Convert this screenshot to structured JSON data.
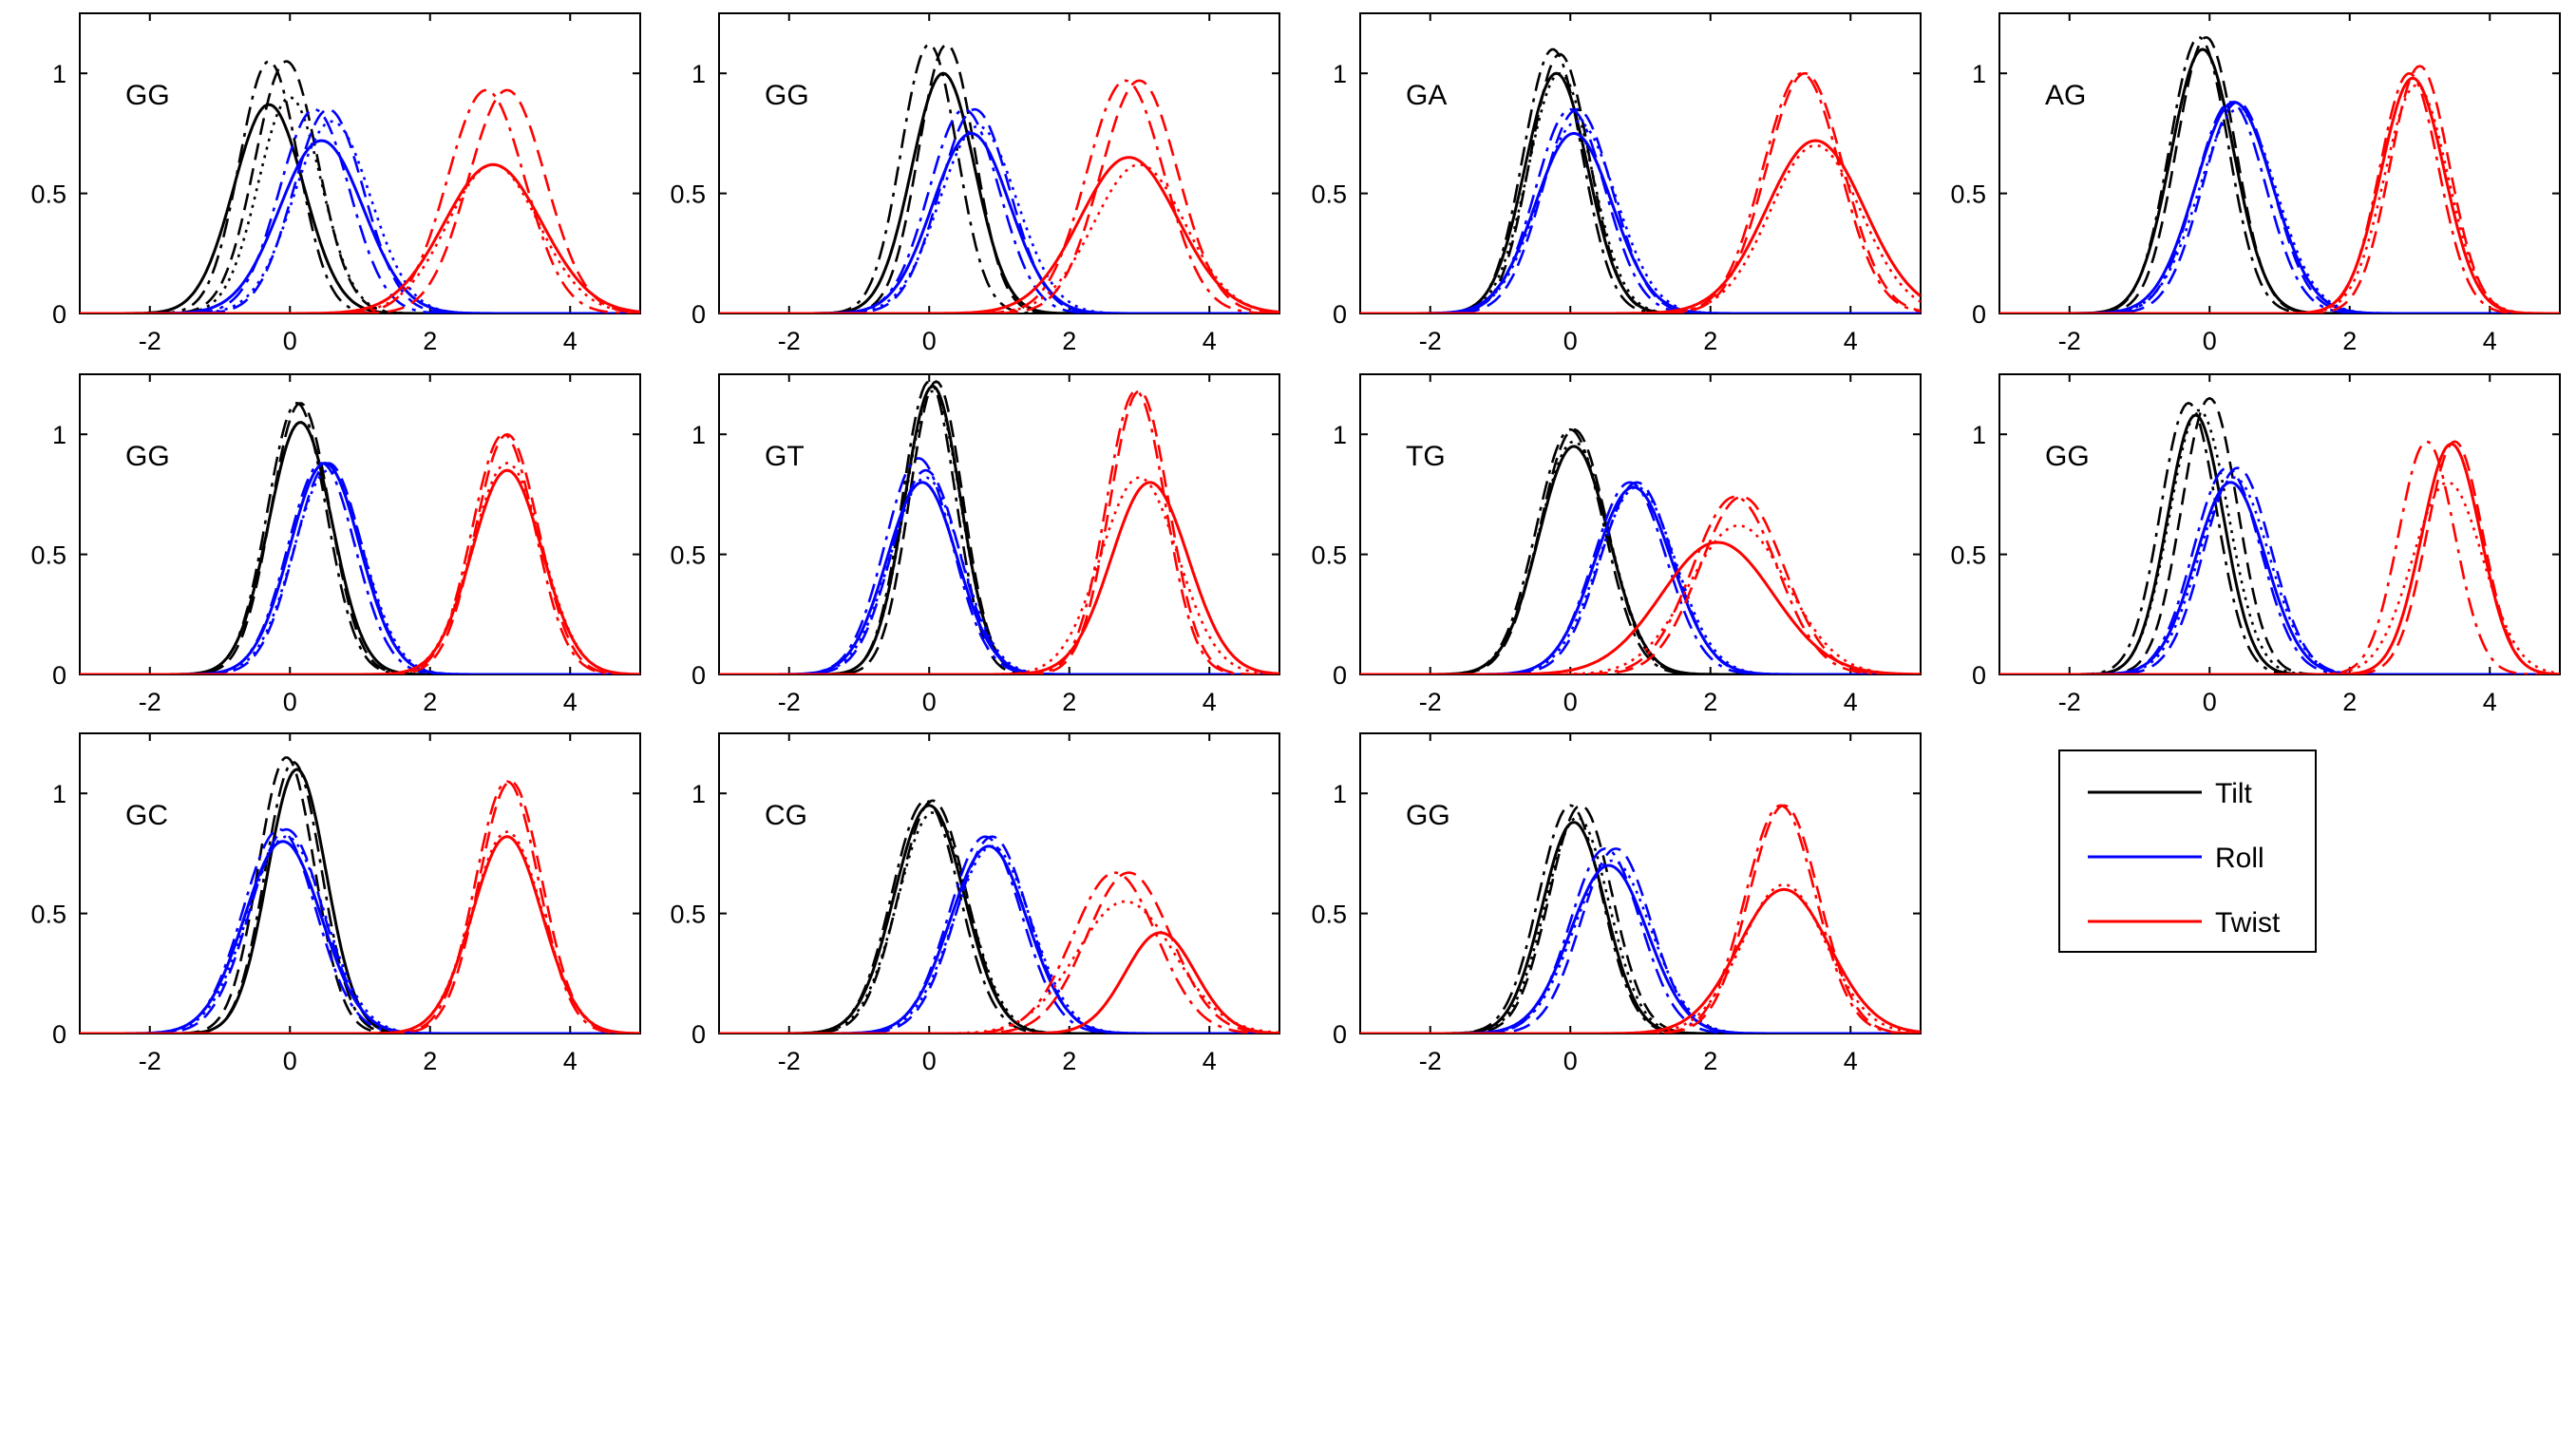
{
  "chart_data": {
    "type": "line",
    "xlim": [
      -3,
      5
    ],
    "ylim": [
      0,
      1.25
    ],
    "x_ticks": [
      -2,
      0,
      2,
      4
    ],
    "x_tick_labels": [
      "-2",
      "0",
      "2",
      "4"
    ],
    "y_ticks": [
      0,
      0.5,
      1
    ],
    "y_tick_labels": [
      "0",
      "0.5",
      "1"
    ],
    "grid": false,
    "line_styles": [
      "solid",
      "dashed",
      "dashdot",
      "dotted"
    ],
    "colors": {
      "Tilt": "#000000",
      "Roll": "#0000ff",
      "Twist": "#ff0000"
    },
    "legend": {
      "placement": "row-3-column-4",
      "entries": [
        {
          "label": "Tilt",
          "color": "#000000"
        },
        {
          "label": "Roll",
          "color": "#0000ff"
        },
        {
          "label": "Twist",
          "color": "#ff0000"
        }
      ]
    },
    "panels": [
      {
        "label": "GG",
        "series": [
          {
            "variable": "Tilt",
            "curves": [
              [
                -0.3,
                0.5,
                0.87
              ],
              [
                -0.05,
                0.45,
                1.05
              ],
              [
                -0.3,
                0.42,
                1.05
              ],
              [
                0.0,
                0.45,
                0.9
              ]
            ]
          },
          {
            "variable": "Roll",
            "curves": [
              [
                0.45,
                0.6,
                0.72
              ],
              [
                0.55,
                0.5,
                0.85
              ],
              [
                0.35,
                0.5,
                0.85
              ],
              [
                0.6,
                0.55,
                0.8
              ]
            ]
          },
          {
            "variable": "Twist",
            "curves": [
              [
                2.9,
                0.7,
                0.62
              ],
              [
                3.1,
                0.55,
                0.93
              ],
              [
                2.8,
                0.55,
                0.93
              ],
              [
                2.9,
                0.65,
                0.62
              ]
            ]
          }
        ]
      },
      {
        "label": "GG",
        "series": [
          {
            "variable": "Tilt",
            "curves": [
              [
                0.2,
                0.45,
                1.0
              ],
              [
                0.25,
                0.4,
                1.12
              ],
              [
                0.0,
                0.4,
                1.12
              ],
              [
                0.2,
                0.45,
                1.0
              ]
            ]
          },
          {
            "variable": "Roll",
            "curves": [
              [
                0.6,
                0.55,
                0.75
              ],
              [
                0.65,
                0.5,
                0.85
              ],
              [
                0.5,
                0.5,
                0.85
              ],
              [
                0.7,
                0.55,
                0.78
              ]
            ]
          },
          {
            "variable": "Twist",
            "curves": [
              [
                2.85,
                0.7,
                0.65
              ],
              [
                3.0,
                0.55,
                0.97
              ],
              [
                2.8,
                0.55,
                0.97
              ],
              [
                3.0,
                0.65,
                0.62
              ]
            ]
          }
        ]
      },
      {
        "label": "GA",
        "series": [
          {
            "variable": "Tilt",
            "curves": [
              [
                -0.2,
                0.45,
                1.0
              ],
              [
                -0.15,
                0.42,
                1.08
              ],
              [
                -0.25,
                0.42,
                1.1
              ],
              [
                -0.15,
                0.45,
                1.0
              ]
            ]
          },
          {
            "variable": "Roll",
            "curves": [
              [
                0.05,
                0.55,
                0.75
              ],
              [
                0.1,
                0.5,
                0.85
              ],
              [
                0.0,
                0.5,
                0.85
              ],
              [
                0.1,
                0.55,
                0.8
              ]
            ]
          },
          {
            "variable": "Twist",
            "curves": [
              [
                3.5,
                0.7,
                0.72
              ],
              [
                3.35,
                0.55,
                1.0
              ],
              [
                3.3,
                0.55,
                1.0
              ],
              [
                3.5,
                0.65,
                0.7
              ]
            ]
          }
        ]
      },
      {
        "label": "AG",
        "series": [
          {
            "variable": "Tilt",
            "curves": [
              [
                -0.1,
                0.45,
                1.1
              ],
              [
                -0.05,
                0.42,
                1.15
              ],
              [
                -0.15,
                0.42,
                1.15
              ],
              [
                -0.1,
                0.45,
                1.1
              ]
            ]
          },
          {
            "variable": "Roll",
            "curves": [
              [
                0.35,
                0.55,
                0.88
              ],
              [
                0.4,
                0.5,
                0.88
              ],
              [
                0.3,
                0.5,
                0.88
              ],
              [
                0.4,
                0.55,
                0.85
              ]
            ]
          },
          {
            "variable": "Twist",
            "curves": [
              [
                2.9,
                0.45,
                0.98
              ],
              [
                3.0,
                0.42,
                1.03
              ],
              [
                2.85,
                0.42,
                1.0
              ],
              [
                2.95,
                0.45,
                0.95
              ]
            ]
          }
        ]
      },
      {
        "label": "GG",
        "series": [
          {
            "variable": "Tilt",
            "curves": [
              [
                0.15,
                0.45,
                1.05
              ],
              [
                0.15,
                0.42,
                1.13
              ],
              [
                0.1,
                0.42,
                1.13
              ],
              [
                0.15,
                0.45,
                1.05
              ]
            ]
          },
          {
            "variable": "Roll",
            "curves": [
              [
                0.5,
                0.5,
                0.88
              ],
              [
                0.55,
                0.48,
                0.88
              ],
              [
                0.45,
                0.48,
                0.88
              ],
              [
                0.55,
                0.5,
                0.85
              ]
            ]
          },
          {
            "variable": "Twist",
            "curves": [
              [
                3.1,
                0.5,
                0.85
              ],
              [
                3.1,
                0.45,
                1.0
              ],
              [
                3.05,
                0.45,
                1.0
              ],
              [
                3.1,
                0.5,
                0.88
              ]
            ]
          }
        ]
      },
      {
        "label": "GT",
        "series": [
          {
            "variable": "Tilt",
            "curves": [
              [
                0.05,
                0.4,
                1.2
              ],
              [
                0.1,
                0.38,
                1.22
              ],
              [
                0.0,
                0.38,
                1.22
              ],
              [
                0.05,
                0.4,
                1.18
              ]
            ]
          },
          {
            "variable": "Roll",
            "curves": [
              [
                -0.1,
                0.5,
                0.8
              ],
              [
                -0.05,
                0.48,
                0.85
              ],
              [
                -0.15,
                0.48,
                0.9
              ],
              [
                -0.05,
                0.5,
                0.82
              ]
            ]
          },
          {
            "variable": "Twist",
            "curves": [
              [
                3.15,
                0.55,
                0.8
              ],
              [
                3.0,
                0.42,
                1.18
              ],
              [
                2.95,
                0.42,
                1.18
              ],
              [
                3.0,
                0.55,
                0.82
              ]
            ]
          }
        ]
      },
      {
        "label": "TG",
        "series": [
          {
            "variable": "Tilt",
            "curves": [
              [
                0.05,
                0.5,
                0.95
              ],
              [
                0.05,
                0.48,
                1.02
              ],
              [
                0.0,
                0.48,
                1.02
              ],
              [
                0.05,
                0.5,
                0.97
              ]
            ]
          },
          {
            "variable": "Roll",
            "curves": [
              [
                0.9,
                0.55,
                0.78
              ],
              [
                0.95,
                0.52,
                0.8
              ],
              [
                0.85,
                0.52,
                0.8
              ],
              [
                0.95,
                0.55,
                0.78
              ]
            ]
          },
          {
            "variable": "Twist",
            "curves": [
              [
                2.1,
                0.8,
                0.55
              ],
              [
                2.45,
                0.6,
                0.74
              ],
              [
                2.35,
                0.6,
                0.74
              ],
              [
                2.4,
                0.7,
                0.62
              ]
            ]
          }
        ]
      },
      {
        "label": "GG",
        "series": [
          {
            "variable": "Tilt",
            "curves": [
              [
                -0.2,
                0.4,
                1.08
              ],
              [
                0.0,
                0.4,
                1.15
              ],
              [
                -0.3,
                0.4,
                1.13
              ],
              [
                -0.15,
                0.42,
                1.1
              ]
            ]
          },
          {
            "variable": "Roll",
            "curves": [
              [
                0.3,
                0.5,
                0.8
              ],
              [
                0.4,
                0.48,
                0.86
              ],
              [
                0.25,
                0.48,
                0.86
              ],
              [
                0.35,
                0.5,
                0.82
              ]
            ]
          },
          {
            "variable": "Twist",
            "curves": [
              [
                3.45,
                0.42,
                0.96
              ],
              [
                3.5,
                0.4,
                0.97
              ],
              [
                3.1,
                0.4,
                0.97
              ],
              [
                3.4,
                0.5,
                0.8
              ]
            ]
          }
        ]
      },
      {
        "label": "GC",
        "series": [
          {
            "variable": "Tilt",
            "curves": [
              [
                0.1,
                0.42,
                1.1
              ],
              [
                -0.05,
                0.4,
                1.15
              ],
              [
                0.05,
                0.4,
                1.13
              ],
              [
                0.1,
                0.42,
                1.1
              ]
            ]
          },
          {
            "variable": "Roll",
            "curves": [
              [
                -0.1,
                0.55,
                0.8
              ],
              [
                -0.05,
                0.52,
                0.85
              ],
              [
                -0.15,
                0.52,
                0.85
              ],
              [
                -0.05,
                0.55,
                0.82
              ]
            ]
          },
          {
            "variable": "Twist",
            "curves": [
              [
                3.1,
                0.5,
                0.82
              ],
              [
                3.15,
                0.45,
                1.05
              ],
              [
                3.1,
                0.45,
                1.05
              ],
              [
                3.1,
                0.5,
                0.84
              ]
            ]
          }
        ]
      },
      {
        "label": "CG",
        "series": [
          {
            "variable": "Tilt",
            "curves": [
              [
                0.0,
                0.5,
                0.95
              ],
              [
                0.05,
                0.48,
                0.97
              ],
              [
                -0.05,
                0.48,
                0.97
              ],
              [
                0.05,
                0.5,
                0.92
              ]
            ]
          },
          {
            "variable": "Roll",
            "curves": [
              [
                0.85,
                0.55,
                0.78
              ],
              [
                0.9,
                0.52,
                0.82
              ],
              [
                0.8,
                0.52,
                0.82
              ],
              [
                0.9,
                0.55,
                0.78
              ]
            ]
          },
          {
            "variable": "Twist",
            "curves": [
              [
                3.3,
                0.5,
                0.42
              ],
              [
                2.85,
                0.6,
                0.67
              ],
              [
                2.65,
                0.6,
                0.67
              ],
              [
                2.8,
                0.7,
                0.55
              ]
            ]
          }
        ]
      },
      {
        "label": "GG",
        "series": [
          {
            "variable": "Tilt",
            "curves": [
              [
                0.05,
                0.45,
                0.88
              ],
              [
                0.15,
                0.45,
                0.95
              ],
              [
                0.0,
                0.45,
                0.95
              ],
              [
                0.1,
                0.45,
                0.9
              ]
            ]
          },
          {
            "variable": "Roll",
            "curves": [
              [
                0.55,
                0.55,
                0.7
              ],
              [
                0.65,
                0.5,
                0.77
              ],
              [
                0.5,
                0.5,
                0.77
              ],
              [
                0.6,
                0.55,
                0.72
              ]
            ]
          },
          {
            "variable": "Twist",
            "curves": [
              [
                3.05,
                0.65,
                0.6
              ],
              [
                3.05,
                0.5,
                0.95
              ],
              [
                3.0,
                0.5,
                0.95
              ],
              [
                3.05,
                0.6,
                0.62
              ]
            ]
          }
        ]
      }
    ]
  }
}
